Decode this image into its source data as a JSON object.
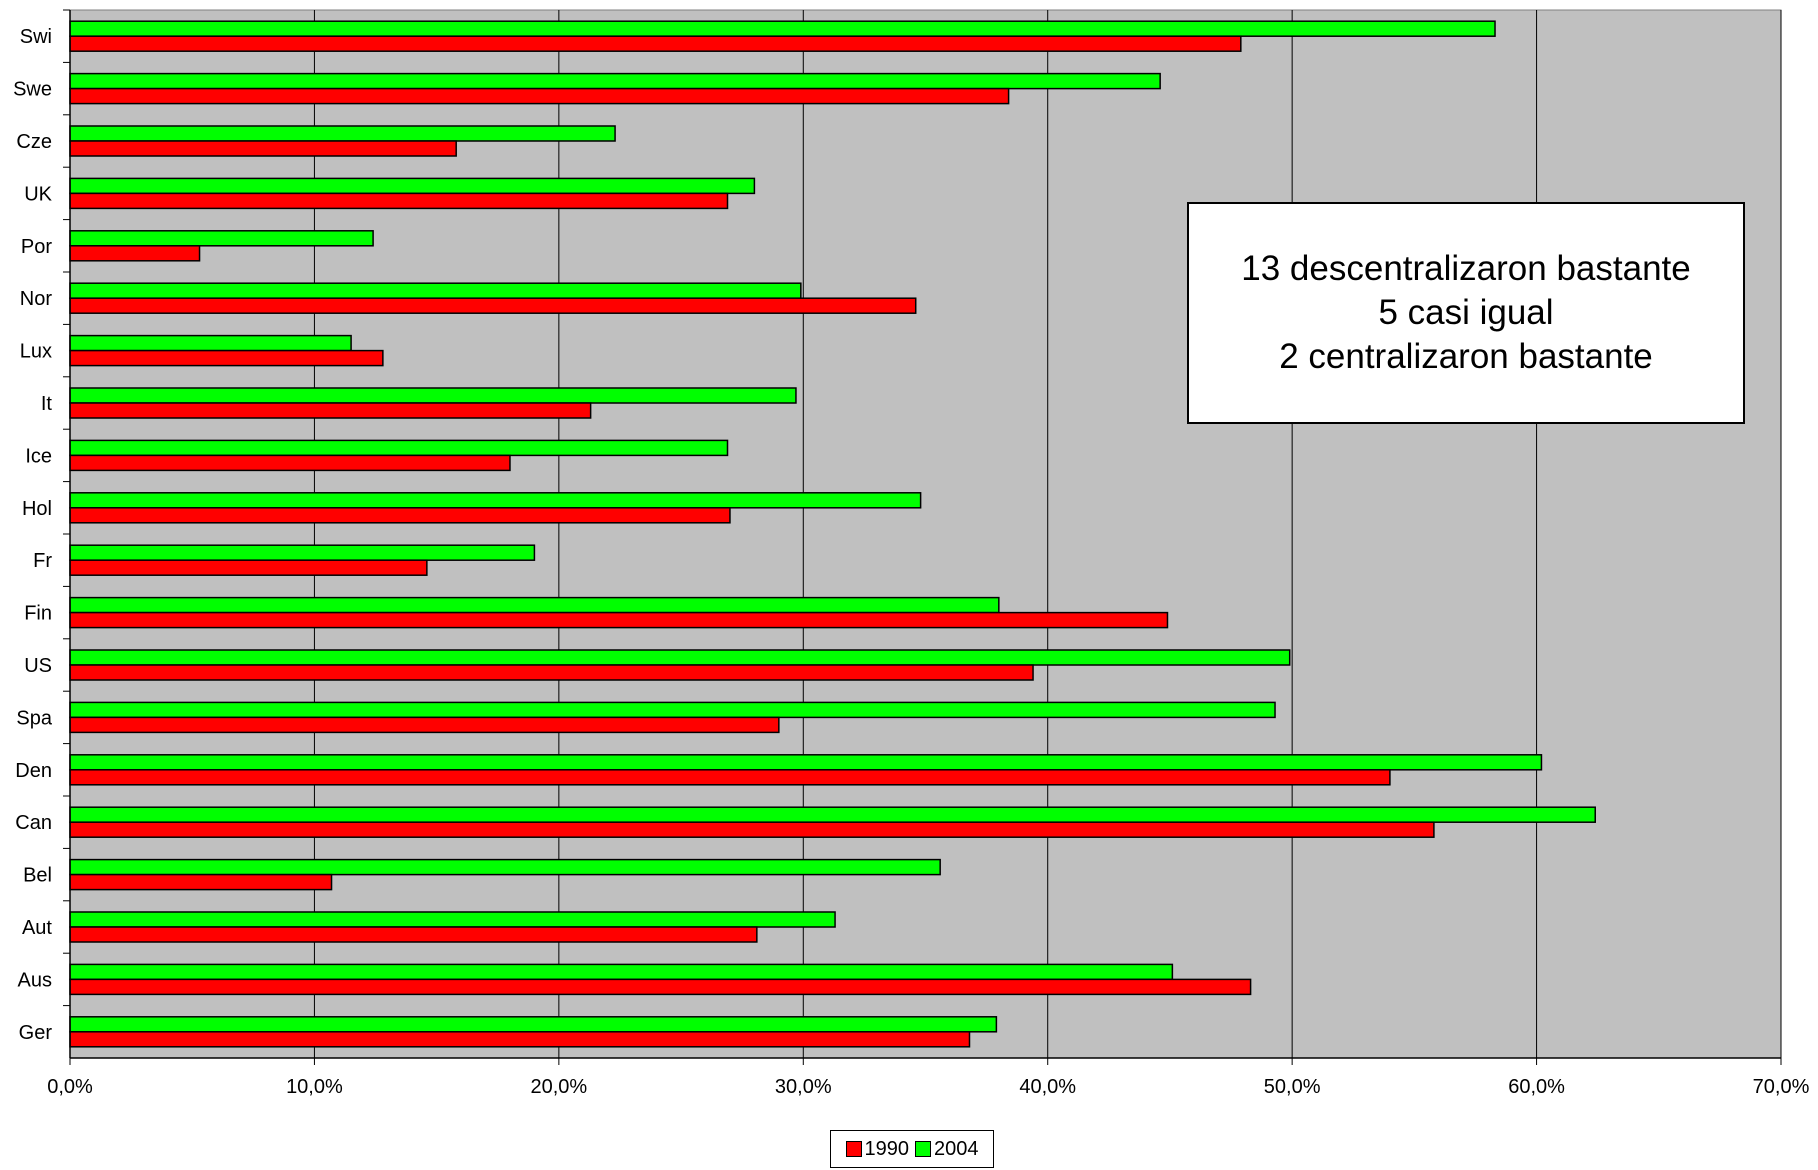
{
  "chart_data": {
    "type": "bar",
    "orientation": "horizontal",
    "categories": [
      "Swi",
      "Swe",
      "Cze",
      "UK",
      "Por",
      "Nor",
      "Lux",
      "It",
      "Ice",
      "Hol",
      "Fr",
      "Fin",
      "US",
      "Spa",
      "Den",
      "Can",
      "Bel",
      "Aut",
      "Aus",
      "Ger"
    ],
    "series": [
      {
        "name": "1990",
        "color": "#ff0000",
        "values": [
          47.9,
          38.4,
          15.8,
          26.9,
          5.3,
          34.6,
          12.8,
          21.3,
          18.0,
          27.0,
          14.6,
          44.9,
          39.4,
          29.0,
          54.0,
          55.8,
          10.7,
          28.1,
          48.3,
          36.8
        ]
      },
      {
        "name": "2004",
        "color": "#00ff00",
        "values": [
          58.3,
          44.6,
          22.3,
          28.0,
          12.4,
          29.9,
          11.5,
          29.7,
          26.9,
          34.8,
          19.0,
          38.0,
          49.9,
          49.3,
          60.2,
          62.4,
          35.6,
          31.3,
          45.1,
          37.9
        ]
      }
    ],
    "xlim": [
      0,
      70
    ],
    "xticks": [
      "0,0%",
      "10,0%",
      "20,0%",
      "30,0%",
      "40,0%",
      "50,0%",
      "60,0%",
      "70,0%"
    ],
    "grid": "vertical",
    "plot_background": "#c0c0c0",
    "legend": "bottom-center",
    "annotation": [
      "13 descentralizaron bastante",
      "5 casi igual",
      "2 centralizaron bastante"
    ]
  }
}
